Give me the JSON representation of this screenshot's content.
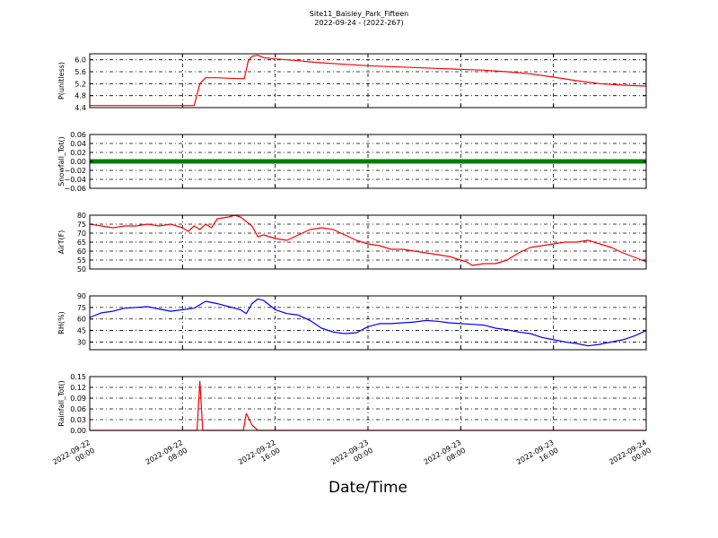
{
  "chart_data": {
    "title": "Site11_Baisley_Park_Fifteen",
    "subtitle": "2022-09-24 - (2022-267)",
    "xlabel": "Date/Time",
    "x_ticks": [
      {
        "value": "2022-09-22 00:00",
        "line1": "2022-09-22",
        "line2": "00:00"
      },
      {
        "value": "2022-09-22 08:00",
        "line1": "2022-09-22",
        "line2": "08:00"
      },
      {
        "value": "2022-09-22 16:00",
        "line1": "2022-09-22",
        "line2": "16:00"
      },
      {
        "value": "2022-09-23 00:00",
        "line1": "2022-09-23",
        "line2": "00:00"
      },
      {
        "value": "2022-09-23 08:00",
        "line1": "2022-09-23",
        "line2": "08:00"
      },
      {
        "value": "2022-09-23 16:00",
        "line1": "2022-09-23",
        "line2": "16:00"
      },
      {
        "value": "2022-09-24 00:00",
        "line1": "2022-09-24",
        "line2": "00:00"
      }
    ],
    "xlim": [
      "2022-09-22 00:00",
      "2022-09-24 00:00"
    ],
    "grid": true,
    "panels": [
      {
        "type": "line",
        "ylabel": "P(unitless)",
        "ylim": [
          4.4,
          6.2
        ],
        "yticks": [
          "4.4",
          "4.8",
          "5.2",
          "5.6",
          "6.0"
        ],
        "color": "#ff0000",
        "series": [
          {
            "x": [
              "2022-09-22 00:00",
              "2022-09-22 08:30",
              "2022-09-22 09:00",
              "2022-09-22 09:30",
              "2022-09-22 10:00",
              "2022-09-22 11:00",
              "2022-09-22 12:00",
              "2022-09-22 13:00",
              "2022-09-22 13:20",
              "2022-09-22 13:40",
              "2022-09-22 14:00",
              "2022-09-22 14:30",
              "2022-09-22 15:00",
              "2022-09-22 16:00",
              "2022-09-22 17:00",
              "2022-09-22 18:00",
              "2022-09-22 19:00",
              "2022-09-22 20:00",
              "2022-09-22 22:00",
              "2022-09-23 00:00",
              "2022-09-23 02:00",
              "2022-09-23 04:00",
              "2022-09-23 06:00",
              "2022-09-23 08:00",
              "2022-09-23 10:00",
              "2022-09-23 12:00",
              "2022-09-23 14:00",
              "2022-09-23 16:00",
              "2022-09-23 18:00",
              "2022-09-23 20:00",
              "2022-09-23 22:00",
              "2022-09-24 00:00"
            ],
            "y": [
              4.47,
              4.47,
              4.47,
              5.2,
              5.4,
              5.4,
              5.38,
              5.37,
              5.37,
              5.95,
              6.12,
              6.15,
              6.07,
              6.03,
              6.0,
              5.97,
              5.93,
              5.9,
              5.85,
              5.8,
              5.77,
              5.74,
              5.71,
              5.68,
              5.65,
              5.6,
              5.53,
              5.42,
              5.3,
              5.2,
              5.15,
              5.12
            ]
          }
        ]
      },
      {
        "type": "line",
        "ylabel": "Snowfall_Tot()",
        "ylim": [
          -0.06,
          0.06
        ],
        "yticks": [
          "−0.06",
          "−0.04",
          "−0.02",
          "0.00",
          "0.02",
          "0.04",
          "0.06"
        ],
        "color": "#008000",
        "series": [
          {
            "x": [
              "2022-09-22 00:00",
              "2022-09-24 00:00"
            ],
            "y": [
              0.0,
              0.0
            ]
          }
        ]
      },
      {
        "type": "line",
        "ylabel": "AirT(F)",
        "ylim": [
          50,
          80
        ],
        "yticks": [
          "50",
          "55",
          "60",
          "65",
          "70",
          "75",
          "80"
        ],
        "color": "#ff0000",
        "series": [
          {
            "x": [
              "2022-09-22 00:00",
              "2022-09-22 01:00",
              "2022-09-22 02:00",
              "2022-09-22 03:00",
              "2022-09-22 04:00",
              "2022-09-22 05:00",
              "2022-09-22 06:00",
              "2022-09-22 07:00",
              "2022-09-22 08:00",
              "2022-09-22 08:30",
              "2022-09-22 09:00",
              "2022-09-22 09:30",
              "2022-09-22 10:00",
              "2022-09-22 10:30",
              "2022-09-22 11:00",
              "2022-09-22 12:00",
              "2022-09-22 12:30",
              "2022-09-22 13:00",
              "2022-09-22 14:00",
              "2022-09-22 14:30",
              "2022-09-22 15:00",
              "2022-09-22 15:30",
              "2022-09-22 16:00",
              "2022-09-22 17:00",
              "2022-09-22 18:00",
              "2022-09-22 19:00",
              "2022-09-22 20:00",
              "2022-09-22 21:00",
              "2022-09-22 22:00",
              "2022-09-22 23:00",
              "2022-09-23 00:00",
              "2022-09-23 01:00",
              "2022-09-23 02:00",
              "2022-09-23 03:00",
              "2022-09-23 04:00",
              "2022-09-23 05:00",
              "2022-09-23 06:00",
              "2022-09-23 07:00",
              "2022-09-23 07:30",
              "2022-09-23 08:00",
              "2022-09-23 08:30",
              "2022-09-23 09:00",
              "2022-09-23 10:00",
              "2022-09-23 11:00",
              "2022-09-23 12:00",
              "2022-09-23 13:00",
              "2022-09-23 14:00",
              "2022-09-23 15:00",
              "2022-09-23 16:00",
              "2022-09-23 17:00",
              "2022-09-23 18:00",
              "2022-09-23 19:00",
              "2022-09-23 20:00",
              "2022-09-23 21:00",
              "2022-09-23 22:00",
              "2022-09-24 00:00"
            ],
            "y": [
              75,
              74,
              73,
              74,
              74,
              75,
              74,
              75,
              73,
              71,
              74,
              72,
              75,
              73,
              78,
              79,
              80,
              79,
              74,
              68,
              69,
              68,
              67,
              66,
              69,
              72,
              73,
              72,
              69,
              66,
              64,
              63,
              61,
              61,
              60,
              59,
              58,
              57,
              56,
              55,
              54,
              52,
              53,
              53,
              55,
              59,
              62,
              63,
              64,
              65,
              65,
              66,
              64,
              62,
              59,
              54
            ]
          }
        ]
      },
      {
        "type": "line",
        "ylabel": "RH(%)",
        "ylim": [
          20,
          90
        ],
        "yticks": [
          "30",
          "45",
          "60",
          "75",
          "90"
        ],
        "color": "#0000ff",
        "series": [
          {
            "x": [
              "2022-09-22 00:00",
              "2022-09-22 01:00",
              "2022-09-22 02:00",
              "2022-09-22 03:00",
              "2022-09-22 04:00",
              "2022-09-22 05:00",
              "2022-09-22 06:00",
              "2022-09-22 07:00",
              "2022-09-22 08:00",
              "2022-09-22 09:00",
              "2022-09-22 10:00",
              "2022-09-22 11:00",
              "2022-09-22 12:00",
              "2022-09-22 13:00",
              "2022-09-22 13:30",
              "2022-09-22 14:00",
              "2022-09-22 14:30",
              "2022-09-22 15:00",
              "2022-09-22 16:00",
              "2022-09-22 17:00",
              "2022-09-22 18:00",
              "2022-09-22 19:00",
              "2022-09-22 20:00",
              "2022-09-22 21:00",
              "2022-09-22 22:00",
              "2022-09-22 23:00",
              "2022-09-23 00:00",
              "2022-09-23 01:00",
              "2022-09-23 02:00",
              "2022-09-23 03:00",
              "2022-09-23 04:00",
              "2022-09-23 05:00",
              "2022-09-23 06:00",
              "2022-09-23 07:00",
              "2022-09-23 08:00",
              "2022-09-23 09:00",
              "2022-09-23 10:00",
              "2022-09-23 11:00",
              "2022-09-23 12:00",
              "2022-09-23 13:00",
              "2022-09-23 14:00",
              "2022-09-23 15:00",
              "2022-09-23 16:00",
              "2022-09-23 17:00",
              "2022-09-23 18:00",
              "2022-09-23 19:00",
              "2022-09-23 20:00",
              "2022-09-23 21:00",
              "2022-09-23 22:00",
              "2022-09-23 23:00",
              "2022-09-24 00:00"
            ],
            "y": [
              62,
              68,
              70,
              74,
              75,
              76,
              73,
              70,
              72,
              74,
              83,
              80,
              76,
              72,
              67,
              80,
              86,
              84,
              72,
              67,
              65,
              58,
              48,
              43,
              41,
              42,
              50,
              54,
              54,
              55,
              56,
              58,
              57,
              55,
              54,
              53,
              52,
              48,
              46,
              43,
              41,
              36,
              33,
              30,
              28,
              25,
              27,
              30,
              33,
              38,
              45
            ]
          }
        ]
      },
      {
        "type": "line",
        "ylabel": "Rainfall_Tot()",
        "ylim": [
          0,
          0.15
        ],
        "yticks": [
          "0.00",
          "0.03",
          "0.06",
          "0.09",
          "0.12",
          "0.15"
        ],
        "color": "#ff0000",
        "series": [
          {
            "x": [
              "2022-09-22 00:00",
              "2022-09-22 09:15",
              "2022-09-22 09:30",
              "2022-09-22 09:45",
              "2022-09-22 13:15",
              "2022-09-22 13:30",
              "2022-09-22 14:00",
              "2022-09-22 14:30",
              "2022-09-24 00:00"
            ],
            "y": [
              0,
              0,
              0.137,
              0,
              0,
              0.047,
              0.015,
              0,
              0
            ]
          }
        ]
      }
    ]
  }
}
